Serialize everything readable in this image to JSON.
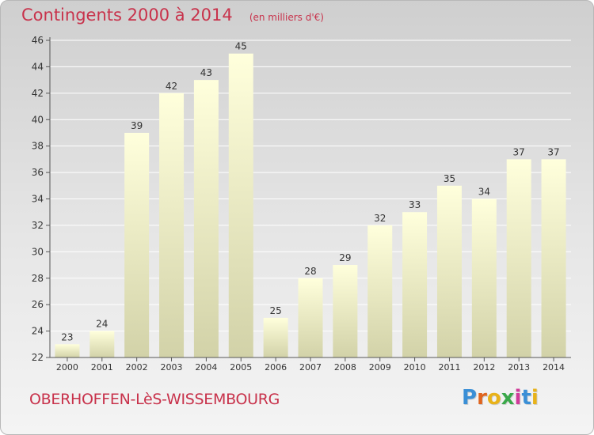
{
  "title": "Contingents 2000 à 2014",
  "subtitle": "(en milliers d'€)",
  "commune": "OBERHOFFEN-LèS-WISSEMBOURG",
  "brand": {
    "letters": [
      "P",
      "r",
      "o",
      "x",
      "i",
      "t",
      "i"
    ],
    "colors": [
      "#3a8fd6",
      "#e0641e",
      "#e8b21a",
      "#3aa84a",
      "#d13b9a",
      "#3a8fd6",
      "#e8b21a"
    ]
  },
  "colors": {
    "title": "#c8324b",
    "bar_top": "#ffffdc",
    "bar_bottom": "#d2d2a8",
    "grid": "#ffffff",
    "axis": "#555555"
  },
  "chart_data": {
    "type": "bar",
    "categories": [
      "2000",
      "2001",
      "2002",
      "2003",
      "2004",
      "2005",
      "2006",
      "2007",
      "2008",
      "2009",
      "2010",
      "2011",
      "2012",
      "2013",
      "2014"
    ],
    "values": [
      23,
      24,
      39,
      42,
      43,
      45,
      25,
      28,
      29,
      32,
      33,
      35,
      34,
      37,
      37
    ],
    "ylim": [
      22,
      46
    ],
    "yticks": [
      22,
      24,
      26,
      28,
      30,
      32,
      34,
      36,
      38,
      40,
      42,
      44,
      46
    ],
    "grid": true,
    "data_labels": true
  }
}
